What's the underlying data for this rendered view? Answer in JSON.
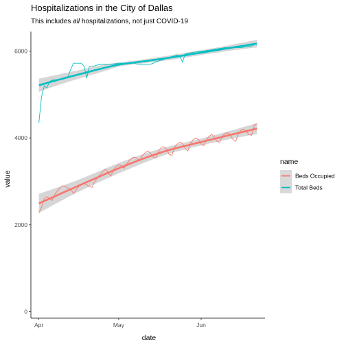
{
  "chart_data": {
    "type": "line",
    "title": "Hospitalizations in the City of Dallas",
    "subtitle_parts": [
      {
        "text": "This includes ",
        "italic": false
      },
      {
        "text": "all",
        "italic": true
      },
      {
        "text": " hospitalizations, not just COVID-19",
        "italic": false
      }
    ],
    "xlabel": "date",
    "ylabel": "value",
    "x_type": "date",
    "xlim": [
      "2020-03-29",
      "2020-06-25"
    ],
    "ylim": [
      -150,
      6450
    ],
    "x_ticks": [
      {
        "date": "2020-04-01",
        "label": "Apr"
      },
      {
        "date": "2020-05-01",
        "label": "May"
      },
      {
        "date": "2020-06-01",
        "label": "Jun"
      }
    ],
    "y_ticks": [
      {
        "value": 0,
        "label": "0"
      },
      {
        "value": 2000,
        "label": "2000"
      },
      {
        "value": 4000,
        "label": "4000"
      },
      {
        "value": 6000,
        "label": "6000"
      }
    ],
    "grid": false,
    "legend": {
      "title": "name",
      "position": "right"
    },
    "series": [
      {
        "name": "Beds Occupied",
        "color": "#F8766D",
        "x": [
          "2020-04-01",
          "2020-04-02",
          "2020-04-03",
          "2020-04-04",
          "2020-04-05",
          "2020-04-06",
          "2020-04-07",
          "2020-04-08",
          "2020-04-09",
          "2020-04-10",
          "2020-04-11",
          "2020-04-12",
          "2020-04-13",
          "2020-04-14",
          "2020-04-15",
          "2020-04-16",
          "2020-04-17",
          "2020-04-18",
          "2020-04-19",
          "2020-04-20",
          "2020-04-21",
          "2020-04-22",
          "2020-04-23",
          "2020-04-24",
          "2020-04-25",
          "2020-04-26",
          "2020-04-27",
          "2020-04-28",
          "2020-04-29",
          "2020-04-30",
          "2020-05-01",
          "2020-05-02",
          "2020-05-03",
          "2020-05-04",
          "2020-05-05",
          "2020-05-06",
          "2020-05-07",
          "2020-05-08",
          "2020-05-09",
          "2020-05-10",
          "2020-05-11",
          "2020-05-12",
          "2020-05-13",
          "2020-05-14",
          "2020-05-15",
          "2020-05-16",
          "2020-05-17",
          "2020-05-18",
          "2020-05-19",
          "2020-05-20",
          "2020-05-21",
          "2020-05-22",
          "2020-05-23",
          "2020-05-24",
          "2020-05-25",
          "2020-05-26",
          "2020-05-27",
          "2020-05-28",
          "2020-05-29",
          "2020-05-30",
          "2020-05-31",
          "2020-06-01",
          "2020-06-02",
          "2020-06-03",
          "2020-06-04",
          "2020-06-05",
          "2020-06-06",
          "2020-06-07",
          "2020-06-08",
          "2020-06-09",
          "2020-06-10",
          "2020-06-11",
          "2020-06-12",
          "2020-06-13",
          "2020-06-14",
          "2020-06-15",
          "2020-06-16",
          "2020-06-17",
          "2020-06-18",
          "2020-06-19",
          "2020-06-20",
          "2020-06-21",
          "2020-06-22"
        ],
        "values": [
          2280,
          2400,
          2600,
          2650,
          2600,
          2560,
          2700,
          2780,
          2860,
          2900,
          2880,
          2840,
          2820,
          2720,
          2800,
          2880,
          2940,
          2960,
          2920,
          2880,
          2860,
          3000,
          3080,
          3160,
          3220,
          3280,
          3200,
          3120,
          3260,
          3340,
          3380,
          3360,
          3300,
          3400,
          3480,
          3540,
          3560,
          3520,
          3480,
          3600,
          3660,
          3700,
          3640,
          3560,
          3540,
          3700,
          3780,
          3800,
          3740,
          3620,
          3600,
          3780,
          3860,
          3900,
          3880,
          3760,
          3700,
          3880,
          3960,
          4000,
          3960,
          3860,
          3820,
          3960,
          4040,
          4080,
          4020,
          3920,
          3900,
          4040,
          4100,
          4120,
          4060,
          3960,
          3920,
          4100,
          4180,
          4200,
          4140,
          4080,
          4060,
          4300,
          4320
        ]
      },
      {
        "name": "Total Beds",
        "color": "#00BFC4",
        "x": [
          "2020-04-01",
          "2020-04-02",
          "2020-04-03",
          "2020-04-04",
          "2020-04-05",
          "2020-04-06",
          "2020-04-07",
          "2020-04-08",
          "2020-04-09",
          "2020-04-10",
          "2020-04-11",
          "2020-04-12",
          "2020-04-13",
          "2020-04-14",
          "2020-04-15",
          "2020-04-16",
          "2020-04-17",
          "2020-04-18",
          "2020-04-19",
          "2020-04-20",
          "2020-04-21",
          "2020-04-22",
          "2020-04-23",
          "2020-04-24",
          "2020-04-25",
          "2020-04-26",
          "2020-04-27",
          "2020-04-28",
          "2020-04-29",
          "2020-04-30",
          "2020-05-01",
          "2020-05-02",
          "2020-05-03",
          "2020-05-04",
          "2020-05-05",
          "2020-05-06",
          "2020-05-07",
          "2020-05-08",
          "2020-05-09",
          "2020-05-10",
          "2020-05-11",
          "2020-05-12",
          "2020-05-13",
          "2020-05-14",
          "2020-05-15",
          "2020-05-16",
          "2020-05-17",
          "2020-05-18",
          "2020-05-19",
          "2020-05-20",
          "2020-05-21",
          "2020-05-22",
          "2020-05-23",
          "2020-05-24",
          "2020-05-25",
          "2020-05-26",
          "2020-05-27",
          "2020-05-28",
          "2020-05-29",
          "2020-05-30",
          "2020-05-31",
          "2020-06-01",
          "2020-06-02",
          "2020-06-03",
          "2020-06-04",
          "2020-06-05",
          "2020-06-06",
          "2020-06-07",
          "2020-06-08",
          "2020-06-09",
          "2020-06-10",
          "2020-06-11",
          "2020-06-12",
          "2020-06-13",
          "2020-06-14",
          "2020-06-15",
          "2020-06-16",
          "2020-06-17",
          "2020-06-18",
          "2020-06-19",
          "2020-06-20",
          "2020-06-21",
          "2020-06-22"
        ],
        "values": [
          4350,
          4950,
          5200,
          5150,
          5300,
          5330,
          5340,
          5340,
          5340,
          5350,
          5370,
          5420,
          5580,
          5720,
          5720,
          5720,
          5720,
          5650,
          5380,
          5650,
          5650,
          5660,
          5680,
          5690,
          5700,
          5700,
          5700,
          5700,
          5700,
          5710,
          5720,
          5720,
          5720,
          5720,
          5720,
          5720,
          5720,
          5700,
          5700,
          5700,
          5700,
          5700,
          5700,
          5720,
          5750,
          5770,
          5790,
          5810,
          5830,
          5850,
          5870,
          5890,
          5910,
          5870,
          5750,
          5930,
          5950,
          5960,
          5970,
          5980,
          5990,
          6000,
          6000,
          6010,
          6020,
          6030,
          6040,
          6050,
          6060,
          6070,
          6080,
          6080,
          6080,
          6080,
          6080,
          6080,
          6080,
          6090,
          6100,
          6110,
          6120,
          6150,
          6170
        ]
      }
    ]
  }
}
